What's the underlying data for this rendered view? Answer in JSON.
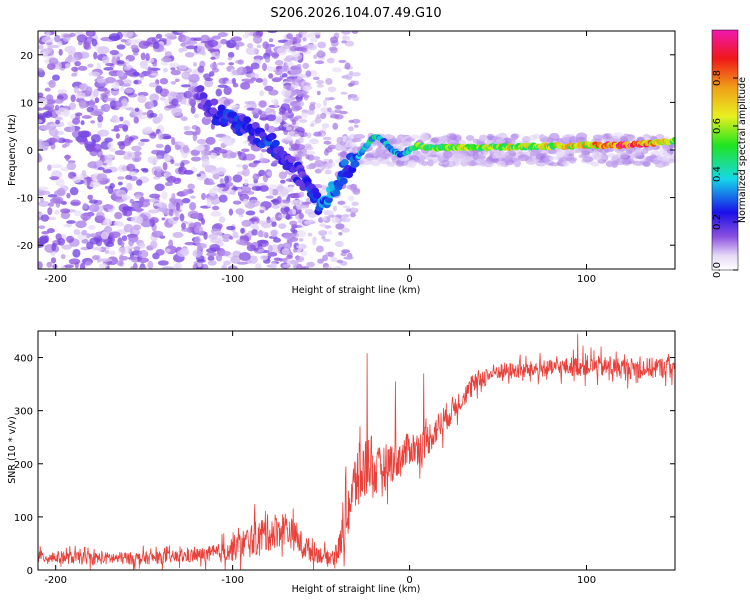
{
  "figure_title": "S206.2026.104.07.49.G10",
  "chart_data": [
    {
      "type": "heatmap",
      "title": "S206.2026.104.07.49.G10",
      "xlabel": "Height of straight line (km)",
      "ylabel": "Frequency (Hz)",
      "xlim": [
        -210,
        150
      ],
      "ylim": [
        -25,
        25
      ],
      "xticks": [
        -200,
        -100,
        0,
        100
      ],
      "yticks": [
        -20,
        -10,
        0,
        10,
        20
      ],
      "colorbar": {
        "label": "Normalized spectral amplitude",
        "range": [
          0,
          1
        ],
        "ticks": [
          0,
          0.2,
          0.4,
          0.6,
          0.8
        ],
        "tick_labels": [
          "0.0",
          "0.2",
          "0.4",
          "0.6",
          "0.8"
        ],
        "colormap": "rainbow (white-purple-blue-cyan-green-yellow-red-magenta)"
      },
      "dominant_frequency_trace": {
        "x": [
          -120,
          -110,
          -100,
          -90,
          -80,
          -70,
          -60,
          -50,
          -42,
          -38,
          -30,
          -20,
          -15,
          -10,
          -5,
          0,
          5,
          10,
          20,
          40,
          60,
          80,
          100,
          120,
          140,
          150
        ],
        "y": [
          12,
          8,
          6,
          4,
          2,
          -2,
          -6,
          -12,
          -8,
          -5,
          -2,
          3,
          2,
          0,
          -1,
          0,
          1,
          0.5,
          0.5,
          0.5,
          0.7,
          0.8,
          1,
          1,
          1.5,
          2
        ],
        "amplitude": [
          0.15,
          0.2,
          0.25,
          0.2,
          0.25,
          0.2,
          0.2,
          0.3,
          0.3,
          0.25,
          0.3,
          0.4,
          0.35,
          0.35,
          0.3,
          0.4,
          0.55,
          0.5,
          0.55,
          0.55,
          0.6,
          0.6,
          0.65,
          0.85,
          0.7,
          0.6
        ]
      }
    },
    {
      "type": "line",
      "title": "",
      "xlabel": "Height of straight line (km)",
      "ylabel": "SNR (10 * v/v)",
      "xlim": [
        -210,
        150
      ],
      "ylim": [
        0,
        450
      ],
      "xticks": [
        -200,
        -100,
        0,
        100
      ],
      "yticks": [
        0,
        100,
        200,
        300,
        400
      ],
      "color": "#e8403a",
      "series": [
        {
          "name": "SNR",
          "x": [
            -210,
            -180,
            -150,
            -130,
            -110,
            -100,
            -90,
            -80,
            -70,
            -60,
            -50,
            -45,
            -40,
            -35,
            -30,
            -25,
            -22,
            -20,
            -15,
            -10,
            -5,
            0,
            5,
            10,
            15,
            20,
            25,
            30,
            40,
            50,
            60,
            80,
            100,
            120,
            140,
            150
          ],
          "y": [
            25,
            22,
            22,
            25,
            30,
            40,
            55,
            70,
            80,
            45,
            28,
            22,
            40,
            110,
            170,
            190,
            215,
            180,
            195,
            205,
            210,
            230,
            230,
            245,
            265,
            285,
            305,
            325,
            360,
            375,
            375,
            380,
            385,
            380,
            380,
            385
          ],
          "noise_amplitude": [
            15,
            15,
            15,
            15,
            20,
            30,
            40,
            45,
            40,
            30,
            20,
            15,
            30,
            70,
            80,
            80,
            70,
            60,
            50,
            50,
            45,
            40,
            40,
            40,
            35,
            35,
            30,
            25,
            25,
            20,
            20,
            20,
            25,
            25,
            25,
            25
          ],
          "peaks": [
            {
              "x": -24,
              "y": 408
            },
            {
              "x": 95,
              "y": 445
            },
            {
              "x": -8,
              "y": 355
            },
            {
              "x": 8,
              "y": 370
            }
          ]
        }
      ]
    }
  ]
}
